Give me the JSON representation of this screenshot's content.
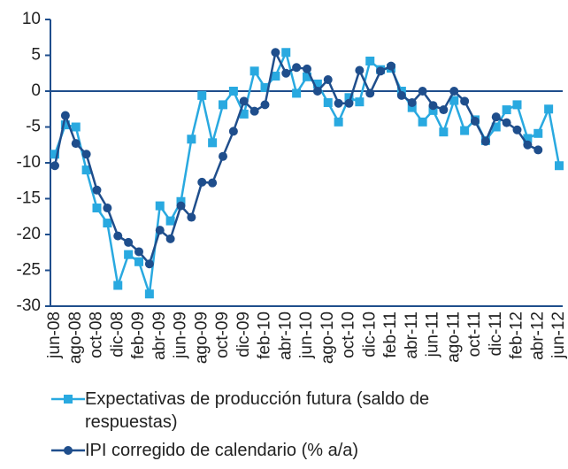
{
  "chart_data": {
    "type": "line",
    "categories": [
      "jun-08",
      null,
      "ago-08",
      null,
      "oct-08",
      null,
      "dic-08",
      null,
      "feb-09",
      null,
      "abr-09",
      null,
      "jun-09",
      null,
      "ago-09",
      null,
      "oct-09",
      null,
      "dic-09",
      null,
      "feb-10",
      null,
      "abr-10",
      null,
      "jun-10",
      null,
      "ago-10",
      null,
      "oct-10",
      null,
      "dic-10",
      null,
      "feb-11",
      null,
      "abr-11",
      null,
      "jun-11",
      null,
      "ago-11",
      null,
      "oct-11",
      null,
      "dic-11",
      null,
      "feb-12",
      null,
      "abr-12",
      null,
      "jun-12"
    ],
    "series": [
      {
        "name": "Expectativas de producción futura (saldo de respuestas)",
        "color": "#29a9e0",
        "marker": "square",
        "values": [
          -8.8,
          -4.7,
          -5.0,
          -11.0,
          -16.3,
          -18.4,
          -27.1,
          -22.8,
          -23.8,
          -28.3,
          -16.0,
          -18.1,
          -15.4,
          -6.7,
          -0.6,
          -7.2,
          -1.9,
          0,
          -3.2,
          2.8,
          0.5,
          2.1,
          5.4,
          -0.3,
          2.0,
          1.0,
          -1.6,
          -4.3,
          -0.9,
          -1.5,
          4.2,
          3.0,
          3.2,
          0,
          -2.3,
          -4.3,
          -2.7,
          -5.7,
          -1.3,
          -5.5,
          -4.0,
          -6.9,
          -5.0,
          -2.6,
          -1.9,
          -6.6,
          -5.9,
          -2.5,
          -10.4
        ]
      },
      {
        "name": "IPI corregido de calendario (% a/a)",
        "color": "#1f4e8c",
        "marker": "circle",
        "values": [
          -10.4,
          -3.4,
          -7.3,
          -8.8,
          -13.8,
          -16.3,
          -20.2,
          -21.1,
          -22.4,
          -24.1,
          -19.4,
          -20.6,
          -16.0,
          -17.6,
          -12.7,
          -12.8,
          -9.1,
          -5.6,
          -1.4,
          -2.8,
          -1.9,
          5.4,
          2.5,
          3.3,
          3.1,
          0,
          1.6,
          -1.7,
          -1.7,
          2.9,
          -0.3,
          2.8,
          3.5,
          -0.6,
          -1.6,
          0,
          -2.0,
          -2.6,
          0,
          -1.4,
          -4.2,
          -7.0,
          -3.6,
          -4.4,
          -5.4,
          -7.5,
          -8.2,
          null,
          null
        ]
      }
    ],
    "ylim": [
      -30,
      10
    ],
    "yticks": [
      -30,
      -25,
      -20,
      -15,
      -10,
      -5,
      0,
      5,
      10
    ],
    "grid": false
  }
}
